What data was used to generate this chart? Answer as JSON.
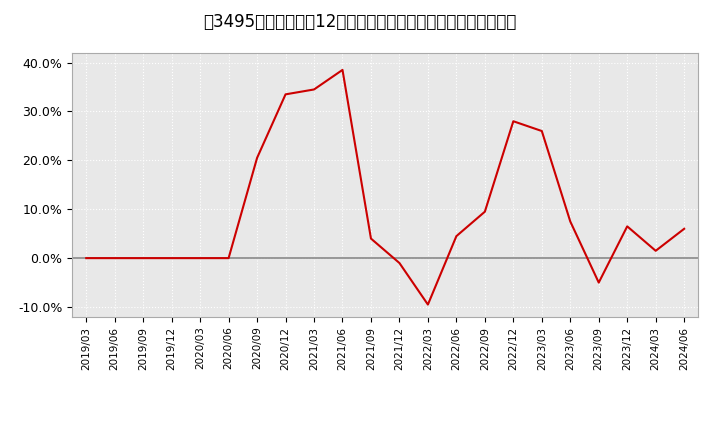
{
  "title": "［3495］　売上高の12か月移動合計の対前年同期増減率の推移",
  "x_labels": [
    "2019/03",
    "2019/06",
    "2019/09",
    "2019/12",
    "2020/03",
    "2020/06",
    "2020/09",
    "2020/12",
    "2021/03",
    "2021/06",
    "2021/09",
    "2021/12",
    "2022/03",
    "2022/06",
    "2022/09",
    "2022/12",
    "2023/03",
    "2023/06",
    "2023/09",
    "2023/12",
    "2024/03",
    "2024/06"
  ],
  "values": [
    0.0,
    0.0,
    0.0,
    0.0,
    0.0,
    0.0,
    20.5,
    33.5,
    34.5,
    38.5,
    4.0,
    -1.0,
    -9.5,
    4.5,
    9.5,
    28.0,
    26.0,
    7.5,
    -5.0,
    6.5,
    1.5,
    6.0
  ],
  "line_color": "#cc0000",
  "bg_color": "#ffffff",
  "plot_bg_color": "#e8e8e8",
  "ylim": [
    -12,
    42
  ],
  "yticks": [
    -10.0,
    0.0,
    10.0,
    20.0,
    30.0,
    40.0
  ],
  "ytick_labels": [
    "-10.0%",
    "0.0%",
    "10.0%",
    "20.0%",
    "30.0%",
    "40.0%"
  ],
  "grid_color": "#ffffff",
  "zero_line_color": "#888888",
  "title_fontsize": 12
}
